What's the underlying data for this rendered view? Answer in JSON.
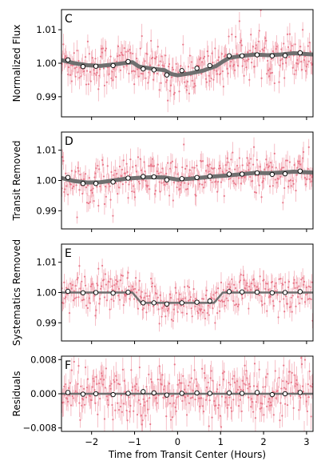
{
  "chart_data": [
    {
      "type": "scatter",
      "panel_label": "C",
      "ylabel": "Normalized Flux",
      "xlabel": "",
      "xlim": [
        -2.7,
        3.15
      ],
      "ylim": [
        0.984,
        1.016
      ],
      "xticks": [
        -2,
        -1,
        0,
        1,
        2,
        3
      ],
      "show_xtick_labels": false,
      "yticks": [
        0.99,
        1.0,
        1.01
      ],
      "ytick_labels": [
        "0.99",
        "1.00",
        "1.01"
      ],
      "raw_scatter": 0.0035,
      "model": {
        "x": [
          -2.7,
          -2.4,
          -2.1,
          -1.8,
          -1.5,
          -1.2,
          -1.05,
          -0.9,
          -0.6,
          -0.3,
          -0.15,
          0.0,
          0.3,
          0.6,
          0.9,
          1.05,
          1.2,
          1.5,
          1.8,
          2.1,
          2.4,
          2.7,
          3.15
        ],
        "y": [
          1.0009,
          1.0,
          0.9994,
          0.9992,
          0.9996,
          1.0001,
          1.0003,
          0.999,
          0.9984,
          0.9979,
          0.9968,
          0.9964,
          0.997,
          0.9978,
          0.9992,
          1.0005,
          1.0016,
          1.0022,
          1.0026,
          1.0024,
          1.0026,
          1.003,
          1.0026
        ],
        "width": 5
      },
      "binned": {
        "x": [
          -2.55,
          -2.2,
          -1.9,
          -1.5,
          -1.15,
          -0.8,
          -0.55,
          -0.25,
          0.1,
          0.45,
          0.75,
          1.2,
          1.5,
          1.85,
          2.2,
          2.5,
          2.85
        ],
        "y": [
          1.001,
          0.999,
          0.9991,
          0.9993,
          1.0005,
          0.9983,
          0.998,
          0.9965,
          0.9978,
          0.9985,
          0.9993,
          1.0022,
          1.0022,
          1.0025,
          1.0022,
          1.0023,
          1.0031
        ]
      }
    },
    {
      "type": "scatter",
      "panel_label": "D",
      "ylabel": "Transit Removed",
      "xlabel": "",
      "xlim": [
        -2.7,
        3.15
      ],
      "ylim": [
        0.984,
        1.016
      ],
      "xticks": [
        -2,
        -1,
        0,
        1,
        2,
        3
      ],
      "show_xtick_labels": false,
      "yticks": [
        0.99,
        1.0,
        1.01
      ],
      "ytick_labels": [
        "0.99",
        "1.00",
        "1.01"
      ],
      "raw_scatter": 0.0035,
      "model": {
        "x": [
          -2.7,
          -2.4,
          -2.1,
          -1.8,
          -1.5,
          -1.2,
          -0.9,
          -0.6,
          -0.3,
          0.0,
          0.3,
          0.6,
          0.9,
          1.2,
          1.5,
          1.8,
          2.1,
          2.4,
          2.7,
          3.15
        ],
        "y": [
          1.0008,
          0.9998,
          0.9993,
          0.9994,
          1.0,
          1.0006,
          1.0009,
          1.0011,
          1.001,
          1.0003,
          1.0006,
          1.001,
          1.0014,
          1.0017,
          1.0021,
          1.0025,
          1.0024,
          1.0026,
          1.0029,
          1.0026
        ],
        "width": 5
      },
      "binned": {
        "x": [
          -2.55,
          -2.2,
          -1.9,
          -1.5,
          -1.15,
          -0.8,
          -0.55,
          -0.25,
          0.1,
          0.45,
          0.75,
          1.2,
          1.5,
          1.85,
          2.2,
          2.5,
          2.85
        ],
        "y": [
          1.001,
          0.999,
          0.999,
          0.9995,
          1.0008,
          1.0013,
          1.0012,
          1.0002,
          1.0006,
          1.001,
          1.0014,
          1.0021,
          1.0021,
          1.0025,
          1.002,
          1.0022,
          1.0031
        ]
      }
    },
    {
      "type": "scatter",
      "panel_label": "E",
      "ylabel": "Systematics Removed",
      "xlabel": "",
      "xlim": [
        -2.7,
        3.15
      ],
      "ylim": [
        0.984,
        1.016
      ],
      "xticks": [
        -2,
        -1,
        0,
        1,
        2,
        3
      ],
      "show_xtick_labels": false,
      "yticks": [
        0.99,
        1.0,
        1.01
      ],
      "ytick_labels": [
        "0.99",
        "1.00",
        "1.01"
      ],
      "raw_scatter": 0.0033,
      "model": {
        "x": [
          -2.7,
          -1.05,
          -0.85,
          0.85,
          1.05,
          3.15
        ],
        "y": [
          1.0,
          1.0,
          0.9966,
          0.9966,
          1.0,
          1.0
        ],
        "width": 2.5
      },
      "binned": {
        "x": [
          -2.55,
          -2.2,
          -1.9,
          -1.5,
          -1.15,
          -0.8,
          -0.55,
          -0.25,
          0.1,
          0.45,
          0.75,
          1.2,
          1.5,
          1.85,
          2.2,
          2.5,
          2.85
        ],
        "y": [
          1.0004,
          0.9999,
          1.0,
          0.9998,
          1.0001,
          0.9966,
          0.9966,
          0.9962,
          0.9966,
          0.9968,
          0.9972,
          1.0003,
          1.0002,
          1.0001,
          0.9999,
          1.0,
          1.0003
        ]
      }
    },
    {
      "type": "scatter",
      "panel_label": "F",
      "ylabel": "Residuals",
      "xlabel": "Time from Transit Center (Hours)",
      "xlim": [
        -2.7,
        3.15
      ],
      "ylim": [
        -0.0088,
        0.0088
      ],
      "xticks": [
        -2,
        -1,
        0,
        1,
        2,
        3
      ],
      "xtick_labels": [
        "−2",
        "−1",
        "0",
        "1",
        "2",
        "3"
      ],
      "show_xtick_labels": true,
      "yticks": [
        -0.008,
        0.0,
        0.008
      ],
      "ytick_labels": [
        "−0.008",
        "0.000",
        "0.008"
      ],
      "raw_scatter": 0.0032,
      "model": {
        "x": [
          -2.7,
          3.15
        ],
        "y": [
          0.0,
          0.0
        ],
        "width": 2.5
      },
      "binned": {
        "x": [
          -2.55,
          -2.2,
          -1.9,
          -1.5,
          -1.15,
          -0.8,
          -0.55,
          -0.25,
          0.1,
          0.45,
          0.75,
          1.2,
          1.5,
          1.85,
          2.2,
          2.5,
          2.85
        ],
        "y": [
          0.0003,
          -0.0001,
          0.0,
          -0.0002,
          0.0001,
          0.0005,
          0.0002,
          -0.0003,
          0.0001,
          0.0002,
          0.0001,
          0.0002,
          0.0001,
          0.0003,
          -0.0002,
          0.0,
          0.0003
        ]
      }
    }
  ]
}
